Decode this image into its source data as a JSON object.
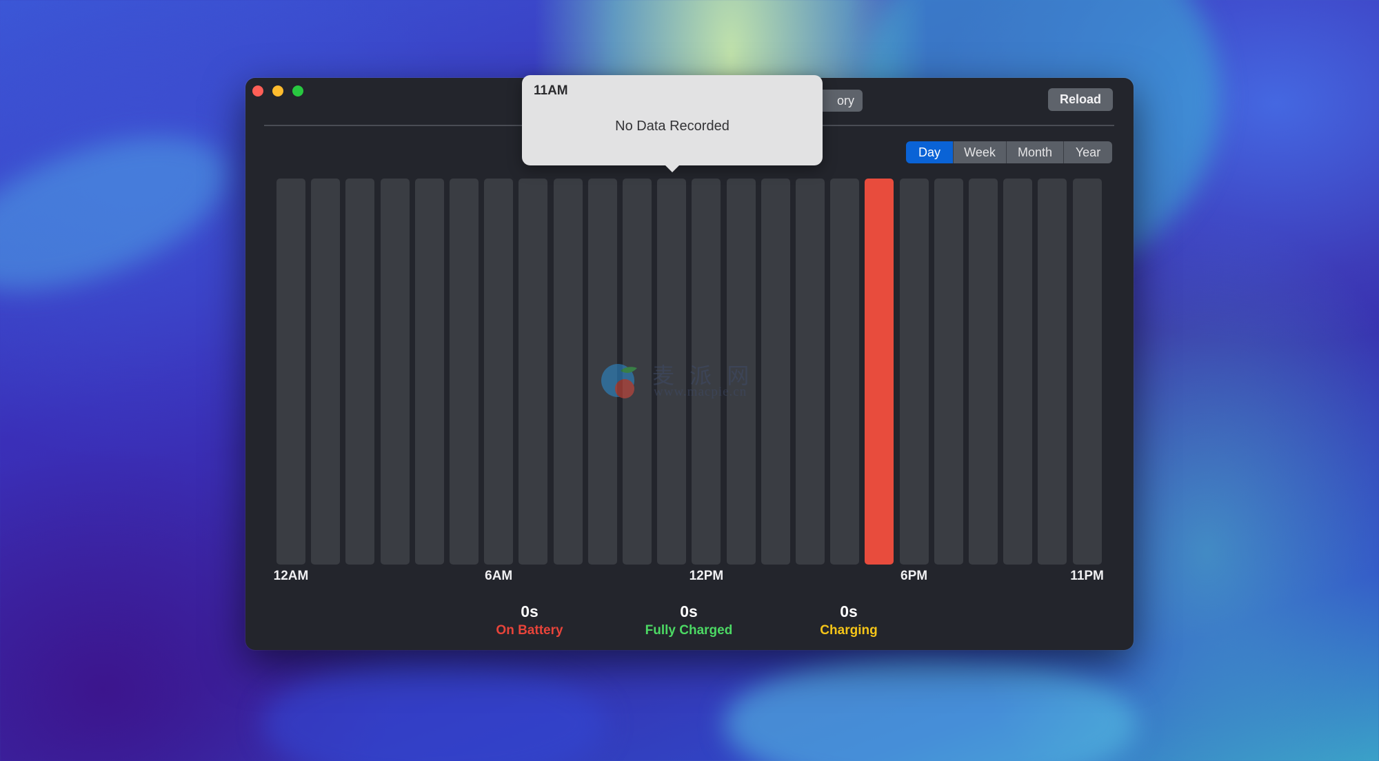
{
  "window": {
    "hidden_tab_fragment": "ory",
    "reload_label": "Reload"
  },
  "range": {
    "options": [
      "Day",
      "Week",
      "Month",
      "Year"
    ],
    "selected": "Day"
  },
  "tooltip": {
    "title": "11AM",
    "body": "No Data Recorded"
  },
  "chart_data": {
    "type": "bar",
    "categories": [
      "12AM",
      "1AM",
      "2AM",
      "3AM",
      "4AM",
      "5AM",
      "6AM",
      "7AM",
      "8AM",
      "9AM",
      "10AM",
      "11AM",
      "12PM",
      "1PM",
      "2PM",
      "3PM",
      "4PM",
      "5PM",
      "6PM",
      "7PM",
      "8PM",
      "9PM",
      "10PM",
      "11PM"
    ],
    "tick_labels": [
      "12AM",
      "6AM",
      "12PM",
      "6PM",
      "11PM"
    ],
    "highlighted_category": "5PM",
    "highlight_color": "#e84c3d",
    "bar_color": "#3a3d43"
  },
  "stats": [
    {
      "value": "0s",
      "label": "On Battery",
      "color": "#e8443a"
    },
    {
      "value": "0s",
      "label": "Fully Charged",
      "color": "#4cd964"
    },
    {
      "value": "0s",
      "label": "Charging",
      "color": "#f5c518"
    }
  ],
  "watermark": {
    "cn_text": "麦 派 网",
    "url_text": "www.macpie.cn"
  }
}
